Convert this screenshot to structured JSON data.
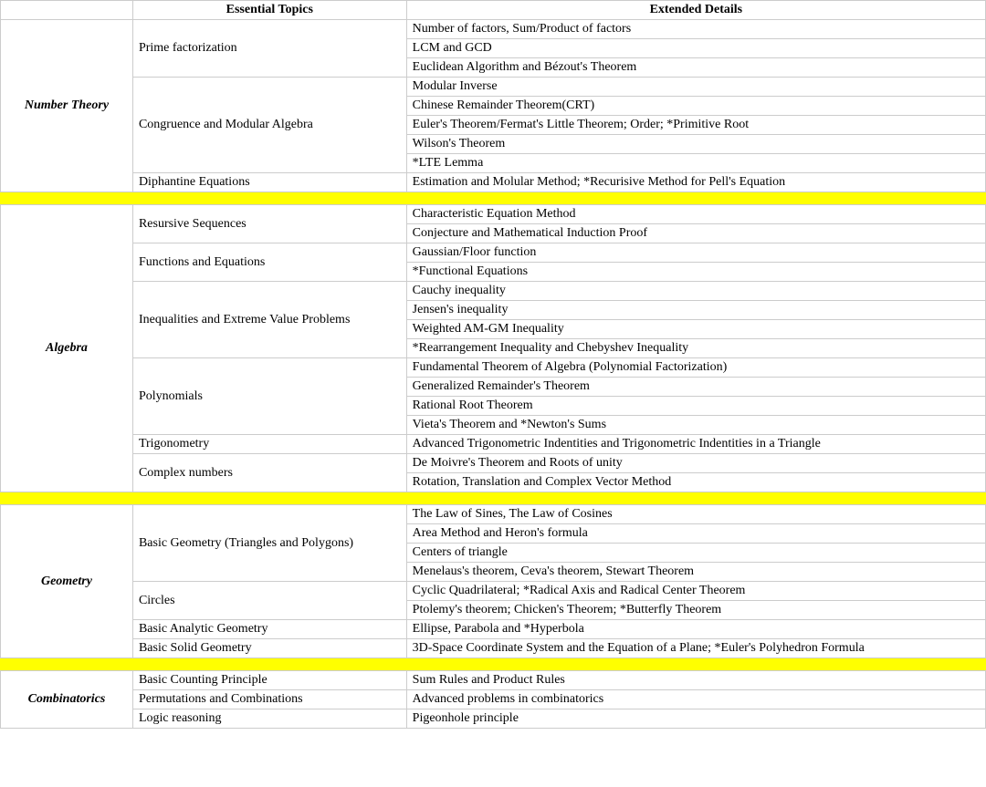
{
  "headers": {
    "col1": "",
    "col2": "Essential Topics",
    "col3": "Extended Details"
  },
  "sections": [
    {
      "category": "Number Theory",
      "topics": [
        {
          "name": "Prime factorization",
          "details": [
            "Number of factors, Sum/Product of factors",
            "LCM and GCD",
            "Euclidean Algorithm and Bézout's Theorem"
          ]
        },
        {
          "name": "Congruence and Modular Algebra",
          "details": [
            "Modular Inverse",
            "Chinese Remainder Theorem(CRT)",
            "Euler's Theorem/Fermat's Little Theorem; Order; *Primitive Root",
            "Wilson's Theorem",
            "*LTE Lemma"
          ]
        },
        {
          "name": "Diphantine Equations",
          "details": [
            "Estimation and Molular Method; *Recurisive Method for Pell's Equation"
          ]
        }
      ]
    },
    {
      "category": "Algebra",
      "topics": [
        {
          "name": "Resursive Sequences",
          "details": [
            "Characteristic Equation Method",
            "Conjecture and Mathematical Induction Proof"
          ]
        },
        {
          "name": "Functions and Equations",
          "details": [
            "Gaussian/Floor function",
            "*Functional Equations"
          ]
        },
        {
          "name": "Inequalities and Extreme Value Problems",
          "details": [
            "Cauchy inequality",
            "Jensen's inequality",
            "Weighted AM-GM Inequality",
            "*Rearrangement Inequality and Chebyshev Inequality"
          ]
        },
        {
          "name": "Polynomials",
          "details": [
            "Fundamental Theorem of Algebra (Polynomial Factorization)",
            "Generalized Remainder's Theorem",
            "Rational Root Theorem",
            "Vieta's Theorem and *Newton's Sums"
          ]
        },
        {
          "name": "Trigonometry",
          "details": [
            "Advanced Trigonometric Indentities and Trigonometric Indentities in a Triangle"
          ]
        },
        {
          "name": "Complex numbers",
          "details": [
            "De Moivre's Theorem and Roots of unity",
            "Rotation, Translation and Complex Vector Method"
          ]
        }
      ]
    },
    {
      "category": "Geometry",
      "topics": [
        {
          "name": "Basic Geometry (Triangles and Polygons)",
          "details": [
            "The Law of Sines, The Law of Cosines",
            "Area Method and Heron's formula",
            "Centers of triangle",
            "Menelaus's theorem, Ceva's theorem, Stewart Theorem"
          ]
        },
        {
          "name": "Circles",
          "details": [
            "Cyclic Quadrilateral; *Radical Axis and Radical Center Theorem",
            "Ptolemy's theorem; Chicken's Theorem; *Butterfly Theorem"
          ]
        },
        {
          "name": "Basic Analytic Geometry",
          "details": [
            "Ellipse, Parabola and *Hyperbola"
          ]
        },
        {
          "name": "Basic Solid Geometry",
          "details": [
            "3D-Space Coordinate System and the Equation of a Plane; *Euler's Polyhedron Formula"
          ]
        }
      ]
    },
    {
      "category": "Combinatorics",
      "topics": [
        {
          "name": "Basic Counting Principle",
          "details": [
            "Sum Rules and Product Rules"
          ]
        },
        {
          "name": "Permutations and Combinations",
          "details": [
            "Advanced problems in combinatorics"
          ]
        },
        {
          "name": "Logic reasoning",
          "details": [
            "Pigeonhole principle"
          ]
        }
      ]
    }
  ]
}
